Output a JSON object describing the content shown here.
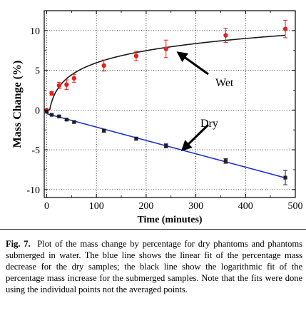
{
  "chart_data": {
    "type": "scatter",
    "xlabel": "Time (minutes)",
    "ylabel": "Mass Change (%)",
    "xlim": [
      -5,
      500
    ],
    "ylim": [
      -11,
      12.5
    ],
    "x_ticks": [
      0,
      100,
      200,
      300,
      400,
      500
    ],
    "y_ticks": [
      -10,
      -5,
      0,
      5,
      10
    ],
    "grid": "dotted",
    "series": [
      {
        "name": "Wet",
        "color": "#e0241b",
        "marker": "circle",
        "points": [
          {
            "x": 0,
            "y": 0,
            "err": 0
          },
          {
            "x": 10,
            "y": 2.1,
            "err": 0.25
          },
          {
            "x": 25,
            "y": 3.1,
            "err": 0.4
          },
          {
            "x": 40,
            "y": 3.2,
            "err": 0.6
          },
          {
            "x": 55,
            "y": 4.0,
            "err": 0.5
          },
          {
            "x": 115,
            "y": 5.6,
            "err": 0.7
          },
          {
            "x": 180,
            "y": 6.8,
            "err": 0.6
          },
          {
            "x": 240,
            "y": 7.7,
            "err": 1.1
          },
          {
            "x": 360,
            "y": 9.4,
            "err": 0.9
          },
          {
            "x": 480,
            "y": 10.2,
            "err": 1.1
          }
        ],
        "fit": "logarithmic",
        "fit_color": "#1a1a1a"
      },
      {
        "name": "Dry",
        "color": "#1f1f1f",
        "marker": "square",
        "points": [
          {
            "x": 0,
            "y": -0.2,
            "err": 0
          },
          {
            "x": 10,
            "y": -0.6,
            "err": 0.1
          },
          {
            "x": 25,
            "y": -0.8,
            "err": 0.1
          },
          {
            "x": 40,
            "y": -1.2,
            "err": 0.15
          },
          {
            "x": 55,
            "y": -1.5,
            "err": 0.15
          },
          {
            "x": 115,
            "y": -2.6,
            "err": 0.2
          },
          {
            "x": 180,
            "y": -3.6,
            "err": 0.2
          },
          {
            "x": 240,
            "y": -4.5,
            "err": 0.25
          },
          {
            "x": 360,
            "y": -6.4,
            "err": 0.3
          },
          {
            "x": 480,
            "y": -8.5,
            "err": 0.9
          }
        ],
        "fit": "linear",
        "fit_color": "#1d2fd1"
      }
    ],
    "annotations": [
      {
        "text": "Wet",
        "target_series": "Wet"
      },
      {
        "text": "Dry",
        "target_series": "Dry"
      }
    ]
  },
  "caption": {
    "label": "Fig. 7.",
    "text": "Plot of the mass change by percentage for dry phantoms and phantoms submerged in water.  The blue line shows the linear fit of the percentage mass decrease for the dry samples; the black line show the logarithmic fit of the percentage mass increase for the submerged samples.  Note that the fits were done using the individual points not the averaged points."
  }
}
